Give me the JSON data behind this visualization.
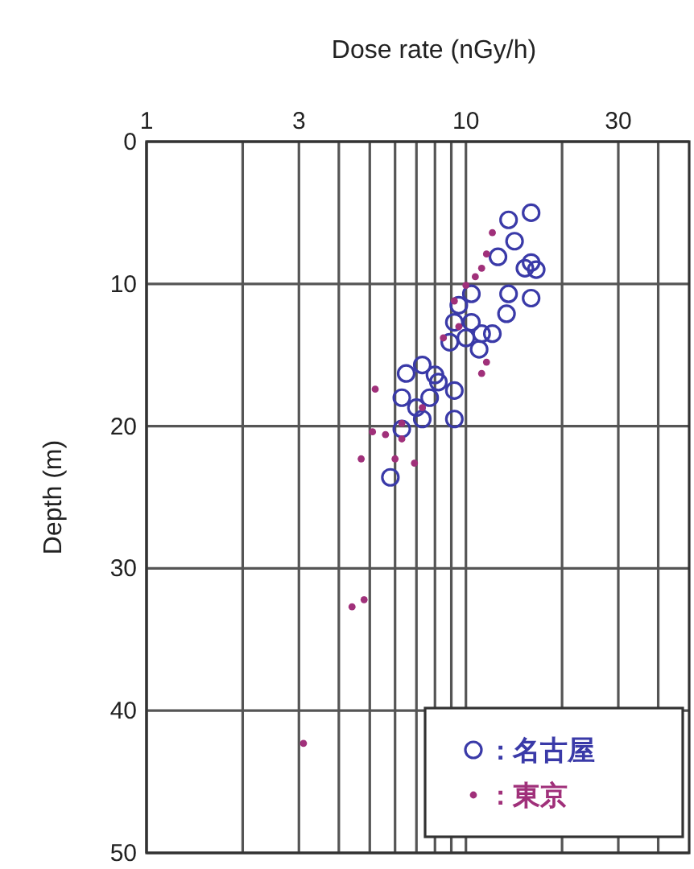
{
  "chart_data": {
    "type": "scatter",
    "xlabel": "Dose rate (nGy/h)",
    "ylabel": "Depth (m)",
    "log": "x",
    "xlim": [
      1,
      50
    ],
    "xticks": [
      1,
      {
        "value": 2,
        "label": null
      },
      3,
      {
        "value": 4,
        "label": null
      },
      {
        "value": 5,
        "label": null
      },
      {
        "value": 6,
        "label": null
      },
      {
        "value": 7,
        "label": null
      },
      {
        "value": 8,
        "label": null
      },
      {
        "value": 9,
        "label": null
      },
      10,
      {
        "value": 20,
        "label": null
      },
      30,
      {
        "value": 40,
        "label": null
      }
    ],
    "ylim": [
      50,
      0
    ],
    "yticks": [
      0,
      10,
      20,
      30,
      40,
      50
    ],
    "grid": true,
    "legend": "bottom right",
    "series": [
      {
        "name": ": 名古屋",
        "color": "#3a3aa8",
        "marker": "circle",
        "x": [
          16.0,
          13.6,
          14.2,
          12.6,
          16.0,
          15.3,
          16.6,
          13.6,
          16.0,
          13.4,
          12.1,
          11.0,
          10.4,
          9.2,
          10.0,
          8.9,
          9.5,
          10.4,
          6.5,
          7.3,
          8.2,
          9.2,
          7.7,
          7.0,
          7.3,
          9.2,
          6.3,
          5.8,
          6.3,
          8.0,
          11.2
        ],
        "values": [
          5.0,
          5.5,
          7.0,
          8.1,
          8.5,
          8.9,
          9.0,
          10.7,
          11.0,
          12.1,
          13.5,
          14.6,
          12.7,
          12.7,
          13.8,
          14.1,
          11.5,
          10.7,
          16.3,
          15.7,
          16.9,
          17.5,
          18.0,
          18.7,
          19.5,
          19.5,
          18.0,
          23.6,
          20.2,
          16.4,
          13.5
        ]
      },
      {
        "name": ": 東京",
        "color": "#a0307a",
        "marker": "dot",
        "x": [
          12.1,
          11.6,
          10.7,
          11.2,
          10.0,
          9.2,
          11.2,
          11.6,
          5.2,
          7.3,
          6.3,
          5.6,
          6.3,
          4.7,
          6.0,
          6.9,
          8.5,
          9.5,
          5.1,
          4.4,
          4.8,
          3.1
        ],
        "values": [
          6.4,
          7.9,
          9.5,
          8.9,
          10.1,
          11.2,
          16.3,
          15.5,
          17.4,
          18.7,
          19.8,
          20.6,
          20.9,
          22.3,
          22.3,
          22.6,
          13.8,
          13.0,
          20.4,
          32.7,
          32.2,
          42.3
        ]
      }
    ]
  }
}
